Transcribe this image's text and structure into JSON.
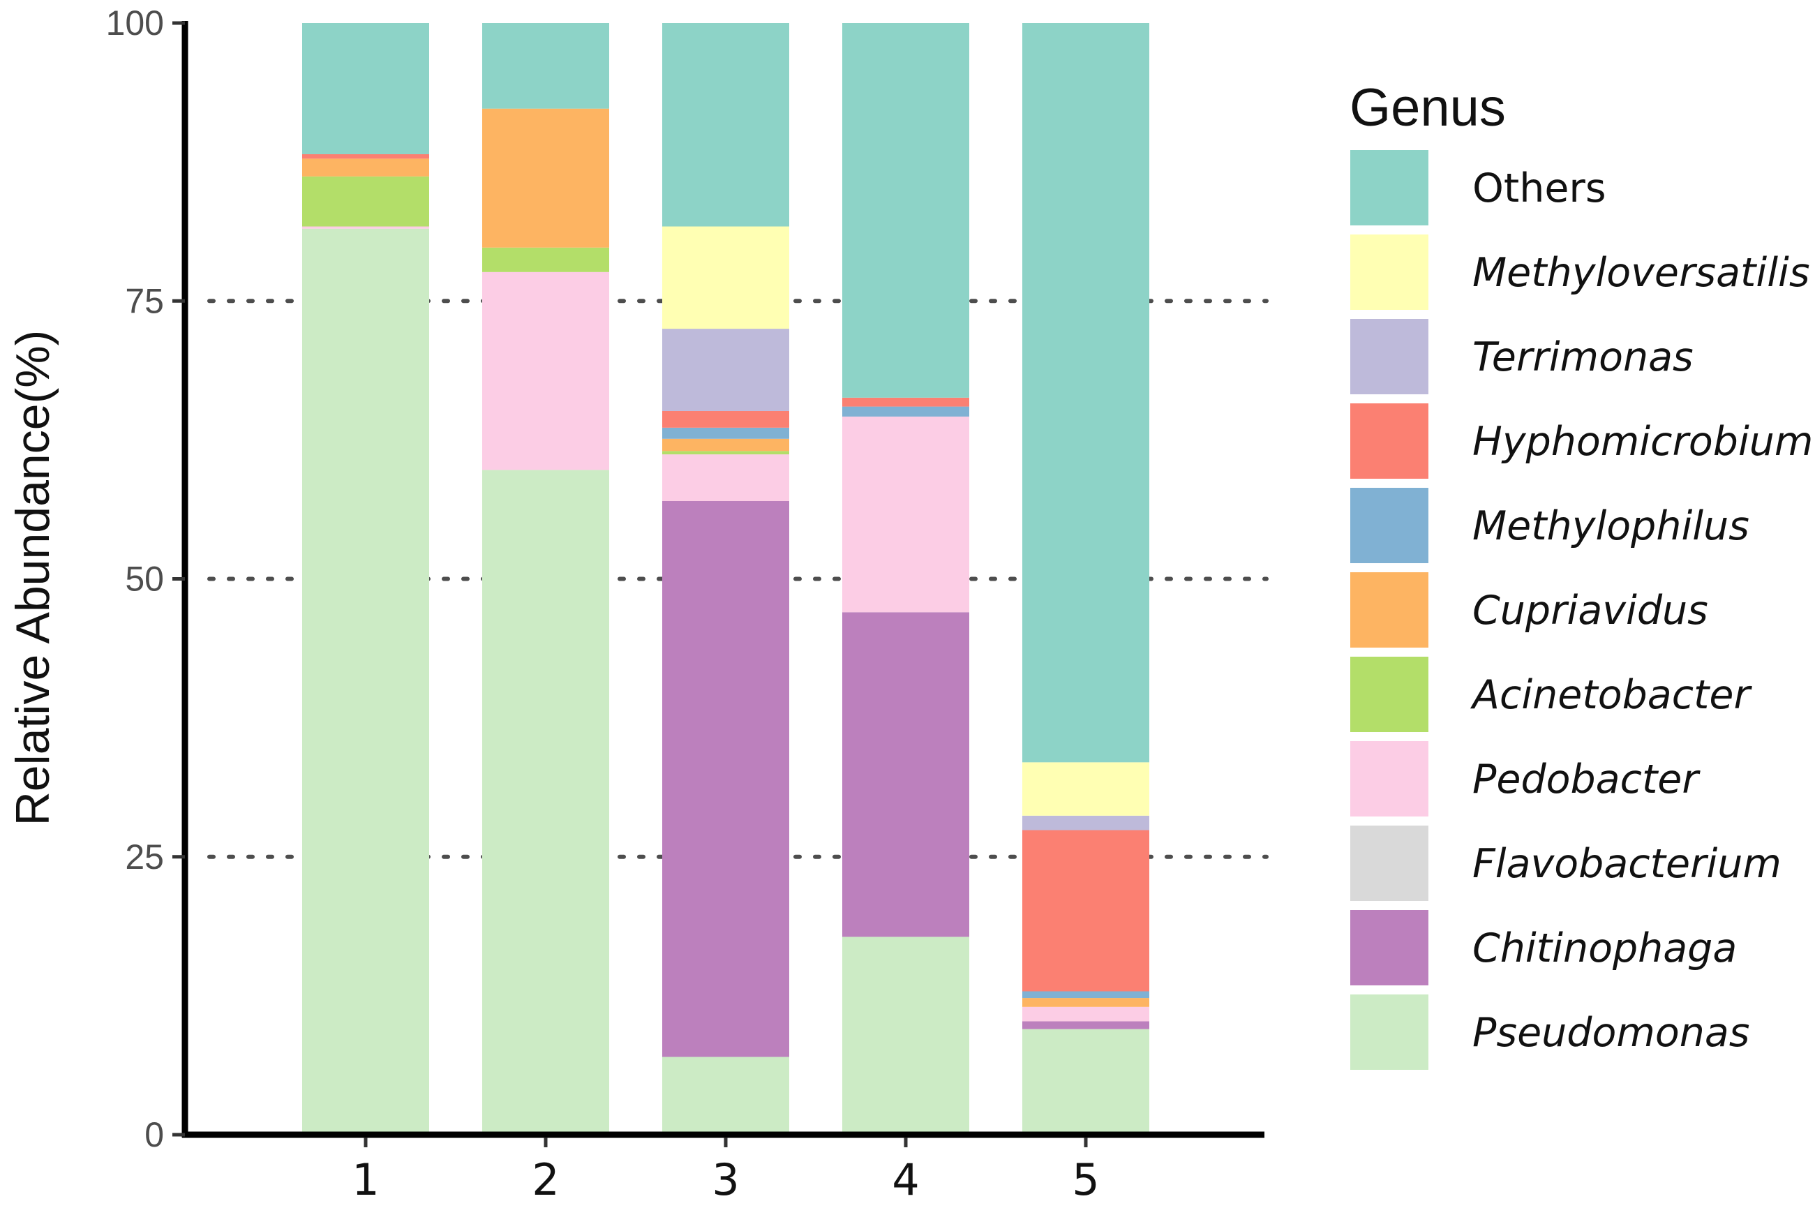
{
  "chart_data": {
    "type": "bar",
    "stacked": true,
    "title": "",
    "xlabel": "",
    "ylabel": "Relative Abundance(%)",
    "ylim": [
      0,
      100
    ],
    "yticks": [
      "0",
      "25",
      "50",
      "75",
      "100"
    ],
    "grid": "dotted horizontal lines at 25, 50, 75",
    "categories": [
      "1",
      "2",
      "3",
      "4",
      "5"
    ],
    "legend_title": "Genus",
    "legend_position": "right",
    "series": [
      {
        "name": "Pseudomonas",
        "color": "#ccebc5",
        "italic": true,
        "values": [
          81.5,
          59.8,
          7.0,
          17.8,
          9.5
        ]
      },
      {
        "name": "Chitinophaga",
        "color": "#bc80bd",
        "italic": true,
        "values": [
          0.0,
          0.0,
          50.0,
          29.2,
          0.7
        ]
      },
      {
        "name": "Flavobacterium",
        "color": "#d9d9d9",
        "italic": true,
        "values": [
          0.0,
          0.0,
          0.0,
          0.0,
          0.0
        ]
      },
      {
        "name": "Pedobacter",
        "color": "#fccde5",
        "italic": true,
        "values": [
          0.2,
          17.8,
          4.2,
          17.6,
          1.3
        ]
      },
      {
        "name": "Acinetobacter",
        "color": "#b3de69",
        "italic": true,
        "values": [
          4.5,
          2.2,
          0.3,
          0.0,
          0.0
        ]
      },
      {
        "name": "Cupriavidus",
        "color": "#fdb462",
        "italic": true,
        "values": [
          1.6,
          12.5,
          1.1,
          0.0,
          0.8
        ]
      },
      {
        "name": "Methylophilus",
        "color": "#80b1d3",
        "italic": true,
        "values": [
          0.0,
          0.0,
          1.0,
          0.9,
          0.6
        ]
      },
      {
        "name": "Hyphomicrobium",
        "color": "#fb8072",
        "italic": true,
        "values": [
          0.4,
          0.0,
          1.5,
          0.8,
          14.5
        ]
      },
      {
        "name": "Terrimonas",
        "color": "#bebada",
        "italic": true,
        "values": [
          0.0,
          0.0,
          7.4,
          0.0,
          1.3
        ]
      },
      {
        "name": "Methyloversatilis",
        "color": "#ffffb3",
        "italic": true,
        "values": [
          0.0,
          0.0,
          9.2,
          0.0,
          4.8
        ]
      },
      {
        "name": "Others",
        "color": "#8dd3c7",
        "italic": false,
        "values": [
          11.8,
          7.7,
          18.3,
          33.7,
          66.5
        ]
      }
    ]
  }
}
